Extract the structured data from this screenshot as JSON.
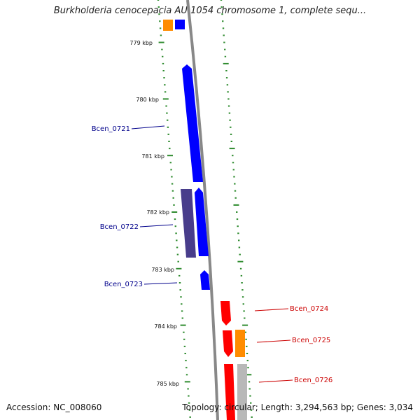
{
  "title": "Burkholderia cenocepacia AU 1054 chromosome 1, complete sequ...",
  "footer": {
    "accession": "Accession: NC_008060",
    "topology": "Topology: circular; Length: 3,294,563 bp; Genes: 3,034"
  },
  "ticks": [
    "779 kbp",
    "780 kbp",
    "781 kbp",
    "782 kbp",
    "783 kbp",
    "784 kbp",
    "785 kbp"
  ],
  "gene_labels": [
    "Bcen_0721",
    "Bcen_0722",
    "Bcen_0723",
    "Bcen_0724",
    "Bcen_0725",
    "Bcen_0726"
  ],
  "colors": {
    "forward_cds": "#0000ff",
    "reverse_cds": "#ff0000",
    "forward_label": "#00008b",
    "reverse_label": "#cc0000",
    "other_forward": "#483d8b",
    "gene_reverse": "#ff8c00",
    "gene_forward_top": "#ff8c00",
    "misc": "#b8b8b8",
    "backbone": "#888888",
    "ruler": "#2e8b2e"
  }
}
